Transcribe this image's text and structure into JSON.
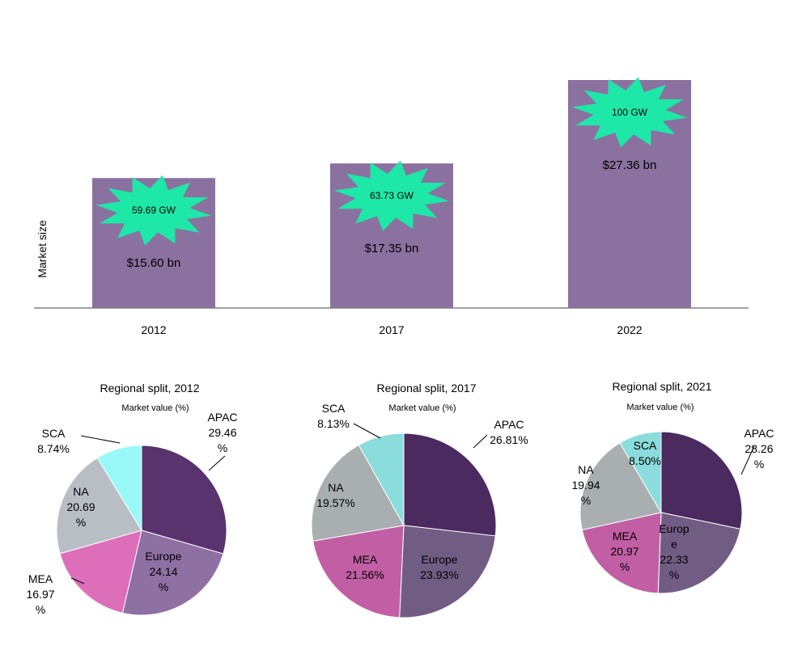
{
  "chart_data": [
    {
      "type": "bar",
      "ylabel": "Market size",
      "categories": [
        "2012",
        "2017",
        "2022"
      ],
      "values": [
        15.6,
        17.35,
        27.36
      ],
      "value_labels": [
        "$15.60 bn",
        "$17.35 bn",
        "$27.36 bn"
      ],
      "burst_labels": [
        "59.69 GW",
        "63.73 GW",
        "100 GW"
      ],
      "colors": {
        "bar": "#8B719F",
        "burst": "#1EE8A8",
        "axis": "#808080"
      }
    },
    {
      "type": "pie",
      "title": "Regional split, 2012",
      "subtitle": "Market value (%)",
      "slices": [
        {
          "label": "APAC",
          "value": 29.46,
          "text": [
            "APAC",
            "29.46",
            "%"
          ],
          "color": "#58336E"
        },
        {
          "label": "Europe",
          "value": 24.14,
          "text": [
            "Europe",
            "24.14",
            "%"
          ],
          "color": "#8F70A3"
        },
        {
          "label": "MEA",
          "value": 16.97,
          "text": [
            "MEA",
            "16.97",
            "%"
          ],
          "color": "#DD6EBA"
        },
        {
          "label": "NA",
          "value": 20.69,
          "text": [
            "NA",
            "20.69",
            "%"
          ],
          "color": "#B9BEC4"
        },
        {
          "label": "SCA",
          "value": 8.74,
          "text": [
            "SCA",
            "8.74%"
          ],
          "color": "#99F8F8"
        }
      ]
    },
    {
      "type": "pie",
      "title": "Regional split, 2017",
      "subtitle": "Market value (%)",
      "slices": [
        {
          "label": "APAC",
          "value": 26.81,
          "text": [
            "APAC",
            "26.81%"
          ],
          "color": "#4B2A60"
        },
        {
          "label": "Europe",
          "value": 23.93,
          "text": [
            "Europe",
            "23.93%"
          ],
          "color": "#715D84"
        },
        {
          "label": "MEA",
          "value": 21.56,
          "text": [
            "MEA",
            "21.56%"
          ],
          "color": "#C25FA4"
        },
        {
          "label": "NA",
          "value": 19.57,
          "text": [
            "NA",
            "19.57%"
          ],
          "color": "#A9AEB1"
        },
        {
          "label": "SCA",
          "value": 8.13,
          "text": [
            "SCA",
            "8.13%"
          ],
          "color": "#8BDCDC"
        }
      ]
    },
    {
      "type": "pie",
      "title": "Regional split, 2021",
      "subtitle": "Market value (%)",
      "slices": [
        {
          "label": "APAC",
          "value": 28.26,
          "text": [
            "APAC",
            "28.26",
            "%"
          ],
          "color": "#4B2A60"
        },
        {
          "label": "Europe",
          "value": 22.33,
          "text": [
            "Europ",
            "e",
            "22.33",
            "%"
          ],
          "color": "#715D84"
        },
        {
          "label": "MEA",
          "value": 20.97,
          "text": [
            "MEA",
            "20.97",
            "%"
          ],
          "color": "#C25FA4"
        },
        {
          "label": "NA",
          "value": 19.94,
          "text": [
            "NA",
            "19.94",
            "%"
          ],
          "color": "#A9AEB1"
        },
        {
          "label": "SCA",
          "value": 8.5,
          "text": [
            "SCA",
            "8.50%"
          ],
          "color": "#8BDCDC"
        }
      ]
    }
  ]
}
